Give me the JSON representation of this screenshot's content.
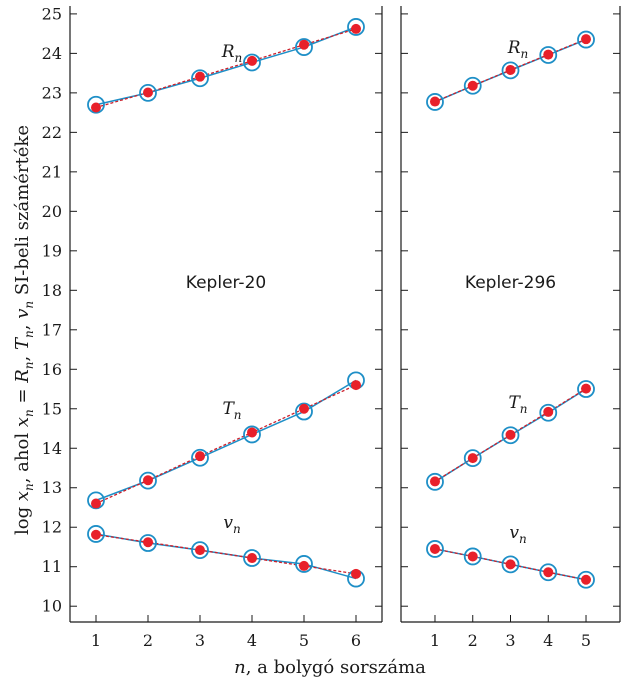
{
  "chart_data": [
    {
      "type": "line",
      "panel_label": "Kepler-20",
      "x": [
        1,
        2,
        3,
        4,
        5,
        6
      ],
      "xlim": [
        0.5,
        6.5
      ],
      "ylim": [
        9.6,
        25.2
      ],
      "series": [
        {
          "name": "R_n",
          "label_main": "R",
          "label_sub": "n",
          "observed": [
            22.7,
            23.0,
            23.37,
            23.77,
            24.16,
            24.67
          ],
          "fitted": [
            22.63,
            23.01,
            23.41,
            23.81,
            24.22,
            24.62
          ]
        },
        {
          "name": "T_n",
          "label_main": "T",
          "label_sub": "n",
          "observed": [
            12.68,
            13.18,
            13.76,
            14.35,
            14.93,
            15.72
          ],
          "fitted": [
            12.6,
            13.19,
            13.8,
            14.4,
            15.0,
            15.6
          ]
        },
        {
          "name": "v_n",
          "label_main": "v",
          "label_sub": "n",
          "observed": [
            11.83,
            11.6,
            11.42,
            11.22,
            11.07,
            10.7
          ],
          "fitted": [
            11.81,
            11.62,
            11.42,
            11.22,
            11.02,
            10.82
          ]
        }
      ]
    },
    {
      "type": "line",
      "panel_label": "Kepler-296",
      "x": [
        1,
        2,
        3,
        4,
        5
      ],
      "xlim": [
        0.1,
        5.9
      ],
      "ylim": [
        9.6,
        25.2
      ],
      "series": [
        {
          "name": "R_n",
          "label_main": "R",
          "label_sub": "n",
          "observed": [
            22.77,
            23.18,
            23.57,
            23.96,
            24.35
          ],
          "fitted": [
            22.78,
            23.18,
            23.58,
            23.97,
            24.36
          ]
        },
        {
          "name": "T_n",
          "label_main": "T",
          "label_sub": "n",
          "observed": [
            13.15,
            13.75,
            14.33,
            14.9,
            15.5
          ],
          "fitted": [
            13.16,
            13.75,
            14.34,
            14.92,
            15.51
          ]
        },
        {
          "name": "v_n",
          "label_main": "v",
          "label_sub": "n",
          "observed": [
            11.45,
            11.26,
            11.06,
            10.86,
            10.67
          ],
          "fitted": [
            11.45,
            11.26,
            11.06,
            10.86,
            10.67
          ]
        }
      ]
    }
  ],
  "axes": {
    "yticks": [
      10,
      11,
      12,
      13,
      14,
      15,
      16,
      17,
      18,
      19,
      20,
      21,
      22,
      23,
      24,
      25
    ],
    "xlabel": "n, a bolygó sorszáma",
    "ylabel": "log xn, ahol xn = Rn, Tn, vn SI-beli számértéke"
  },
  "colors": {
    "observed_marker": "#1e8fc7",
    "observed_line": "#1e8fc7",
    "fitted_marker": "#e8202a",
    "fitted_line": "#cc1f2b",
    "axis": "#1a1a1a"
  }
}
